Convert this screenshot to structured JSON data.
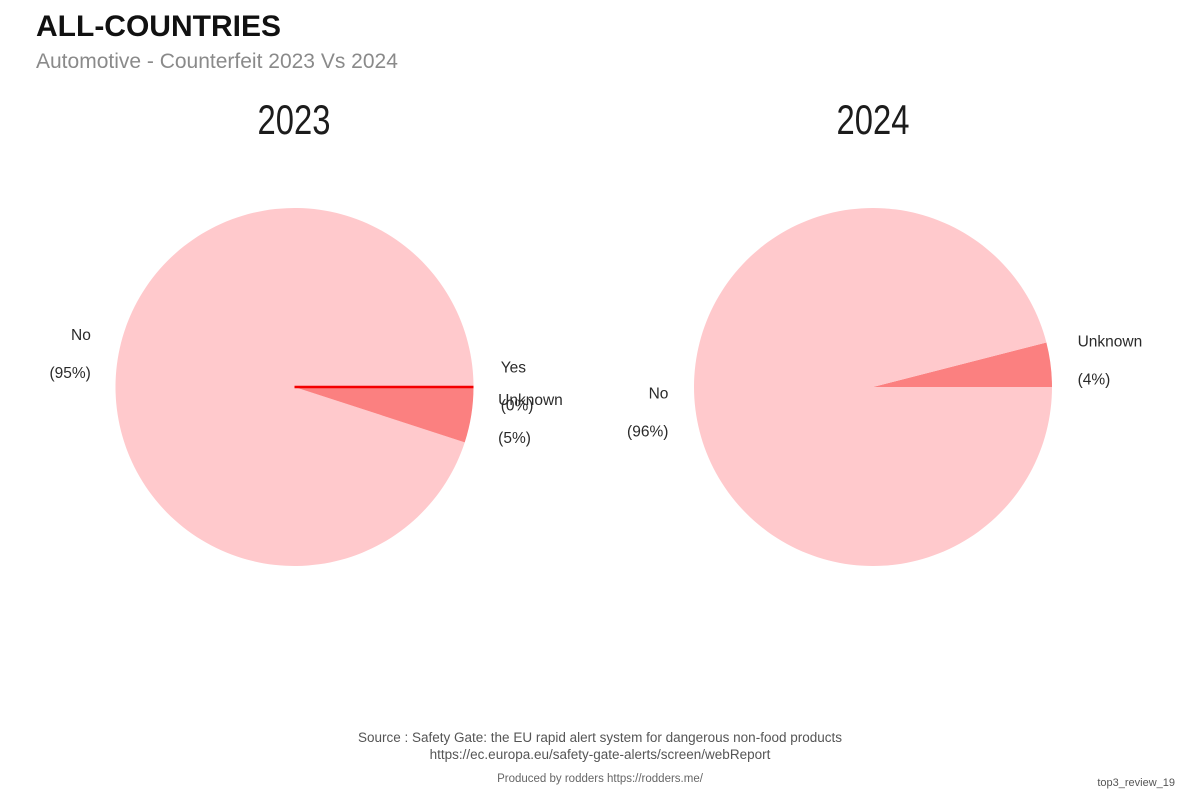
{
  "header": {
    "title": "ALL-COUNTRIES",
    "subtitle": "Automotive - Counterfeit 2023 Vs 2024"
  },
  "chart_data": [
    {
      "type": "pie",
      "title": "2023",
      "startangle": 0,
      "direction": "counterclockwise",
      "legend": "none",
      "slices": [
        {
          "label": "No",
          "pct_label": "(95%)",
          "value": 95,
          "color": "#FFC9CC"
        },
        {
          "label": "Unknown",
          "pct_label": "(5%)",
          "value": 5,
          "color": "#FB8080"
        },
        {
          "label": "Yes",
          "pct_label": "(0%)",
          "value": 0,
          "color": "#F40000"
        }
      ]
    },
    {
      "type": "pie",
      "title": "2024",
      "startangle": 0,
      "direction": "counterclockwise",
      "legend": "none",
      "slices": [
        {
          "label": "Unknown",
          "pct_label": "(4%)",
          "value": 4,
          "color": "#FB8080"
        },
        {
          "label": "No",
          "pct_label": "(96%)",
          "value": 96,
          "color": "#FFC9CC"
        }
      ]
    }
  ],
  "footer": {
    "source_line1": "Source : Safety Gate: the EU rapid alert system for dangerous non-food products",
    "source_line2": "https://ec.europa.eu/safety-gate-alerts/screen/webReport",
    "produced_by": "Produced by rodders https://rodders.me/",
    "watermark": "top3_review_19"
  }
}
